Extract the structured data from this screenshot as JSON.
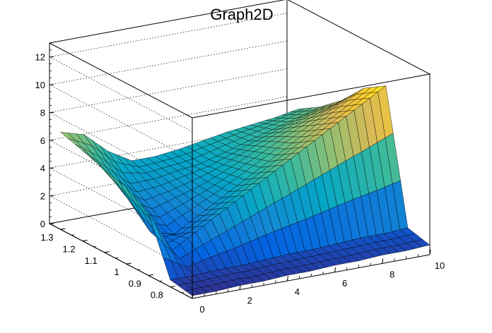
{
  "chart_data": {
    "type": "surface3d",
    "title": "Graph2D",
    "xlabel": "",
    "ylabel": "",
    "zlabel": "",
    "xlim": [
      0,
      10
    ],
    "ylim": [
      0.7,
      1.35
    ],
    "zlim": [
      0,
      13
    ],
    "x_ticks": [
      0,
      2,
      4,
      6,
      8,
      10
    ],
    "y_ticks": [
      0.8,
      0.9,
      1,
      1.1,
      1.2,
      1.3
    ],
    "z_ticks": [
      0,
      2,
      4,
      6,
      8,
      10,
      12
    ],
    "x_tick_labels": [
      "0",
      "2",
      "4",
      "6",
      "8",
      "10"
    ],
    "y_tick_labels": [
      "0.8",
      "0.9",
      "1",
      "1.1",
      "1.2",
      "1.3"
    ],
    "z_tick_labels": [
      "0",
      "2",
      "4",
      "6",
      "8",
      "10",
      "12"
    ],
    "grid": true,
    "colormap": [
      "#352a87",
      "#0363e1",
      "#1485d4",
      "#06a7c6",
      "#38b99e",
      "#92bf73",
      "#d9ba56",
      "#fcce2e",
      "#f9fb0e"
    ],
    "surface_rows_y": [
      0.7,
      0.8,
      0.9,
      1.0,
      1.1,
      1.2,
      1.3
    ],
    "surface_cols_x": [
      0,
      1,
      2,
      3,
      4,
      5,
      6,
      7,
      8,
      9,
      10
    ],
    "surface_z": [
      [
        0.2,
        0.2,
        0.3,
        0.3,
        0.4,
        0.4,
        0.5,
        0.5,
        0.6,
        0.6,
        0.7
      ],
      [
        0.5,
        0.5,
        0.6,
        0.6,
        0.7,
        0.8,
        0.8,
        0.9,
        1.0,
        1.0,
        1.1
      ],
      [
        4.5,
        1.5,
        2.5,
        3.5,
        4.5,
        5.5,
        6.5,
        7.5,
        8.5,
        9.5,
        10.5
      ],
      [
        5.5,
        2.0,
        1.5,
        2.5,
        3.5,
        4.5,
        5.5,
        6.5,
        7.5,
        8.5,
        9.5
      ],
      [
        6.0,
        3.5,
        2.5,
        3.0,
        3.5,
        4.2,
        5.0,
        5.8,
        6.5,
        7.2,
        7.8
      ],
      [
        6.5,
        5.0,
        3.5,
        3.5,
        3.8,
        4.0,
        4.5,
        5.0,
        5.5,
        6.0,
        6.5
      ],
      [
        7.0,
        6.5,
        5.0,
        4.0,
        4.0,
        4.2,
        4.5,
        4.8,
        5.0,
        5.2,
        5.5
      ]
    ]
  }
}
